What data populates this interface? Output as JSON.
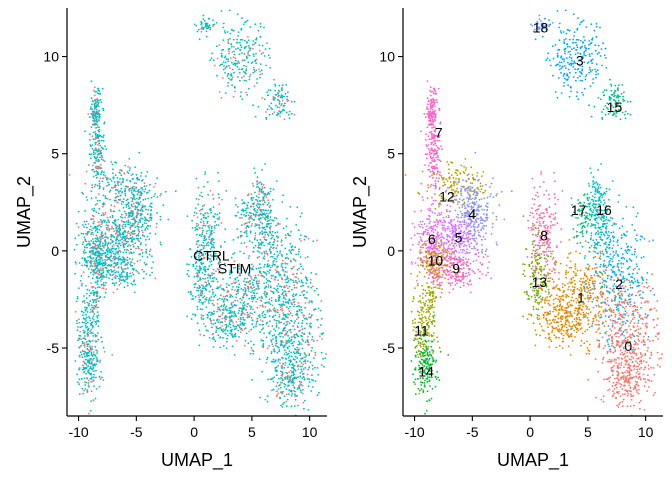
{
  "chart_data": [
    {
      "type": "scatter",
      "xlabel": "UMAP_1",
      "ylabel": "UMAP_2",
      "xlim": [
        -11,
        11.5
      ],
      "ylim": [
        -8.5,
        12.5
      ],
      "xticks": [
        "-10",
        "-5",
        "0",
        "5",
        "10"
      ],
      "yticks": [
        "-5",
        "0",
        "5",
        "10"
      ],
      "grid": false,
      "series": [
        {
          "name": "CTRL",
          "color": "#F8766D"
        },
        {
          "name": "STIM",
          "color": "#00BFC4"
        }
      ],
      "annotations": [
        {
          "text": "CTRL",
          "x": 1.5,
          "y": -0.25
        },
        {
          "text": "STIM",
          "x": 3.5,
          "y": -0.9
        }
      ]
    },
    {
      "type": "scatter",
      "xlabel": "UMAP_1",
      "ylabel": "UMAP_2",
      "xlim": [
        -11,
        11.5
      ],
      "ylim": [
        -8.5,
        12.5
      ],
      "xticks": [
        "-10",
        "-5",
        "0",
        "5",
        "10"
      ],
      "yticks": [
        "-5",
        "0",
        "5",
        "10"
      ],
      "grid": false,
      "clusters": [
        {
          "label": "0",
          "x": 8.5,
          "y": -4.9,
          "color": "#F8766D"
        },
        {
          "label": "1",
          "x": 4.4,
          "y": -2.4,
          "color": "#E58700"
        },
        {
          "label": "2",
          "x": 7.7,
          "y": -1.7,
          "color": "#00B0F6"
        },
        {
          "label": "3",
          "x": 4.3,
          "y": 9.8,
          "color": "#00A5FF"
        },
        {
          "label": "4",
          "x": -5.0,
          "y": 1.9,
          "color": "#8494FF"
        },
        {
          "label": "5",
          "x": -6.2,
          "y": 0.7,
          "color": "#D376FF"
        },
        {
          "label": "6",
          "x": -8.5,
          "y": 0.6,
          "color": "#E76BF3"
        },
        {
          "label": "7",
          "x": -7.9,
          "y": 6.1,
          "color": "#FF61C9"
        },
        {
          "label": "8",
          "x": 1.2,
          "y": 0.8,
          "color": "#FF66A8"
        },
        {
          "label": "9",
          "x": -6.4,
          "y": -0.9,
          "color": "#FF62BC"
        },
        {
          "label": "10",
          "x": -8.2,
          "y": -0.5,
          "color": "#C99800"
        },
        {
          "label": "11",
          "x": -9.4,
          "y": -4.1,
          "color": "#A3A500"
        },
        {
          "label": "12",
          "x": -7.2,
          "y": 2.8,
          "color": "#B79F00"
        },
        {
          "label": "13",
          "x": 0.8,
          "y": -1.6,
          "color": "#6BB100"
        },
        {
          "label": "14",
          "x": -9.0,
          "y": -6.2,
          "color": "#00BA38"
        },
        {
          "label": "15",
          "x": 7.3,
          "y": 7.4,
          "color": "#00C08B"
        },
        {
          "label": "16",
          "x": 6.4,
          "y": 2.1,
          "color": "#00BFC4"
        },
        {
          "label": "17",
          "x": 4.2,
          "y": 2.1,
          "color": "#00BF7D"
        },
        {
          "label": "18",
          "x": 0.9,
          "y": 11.5,
          "color": "#619CFF"
        }
      ]
    }
  ]
}
